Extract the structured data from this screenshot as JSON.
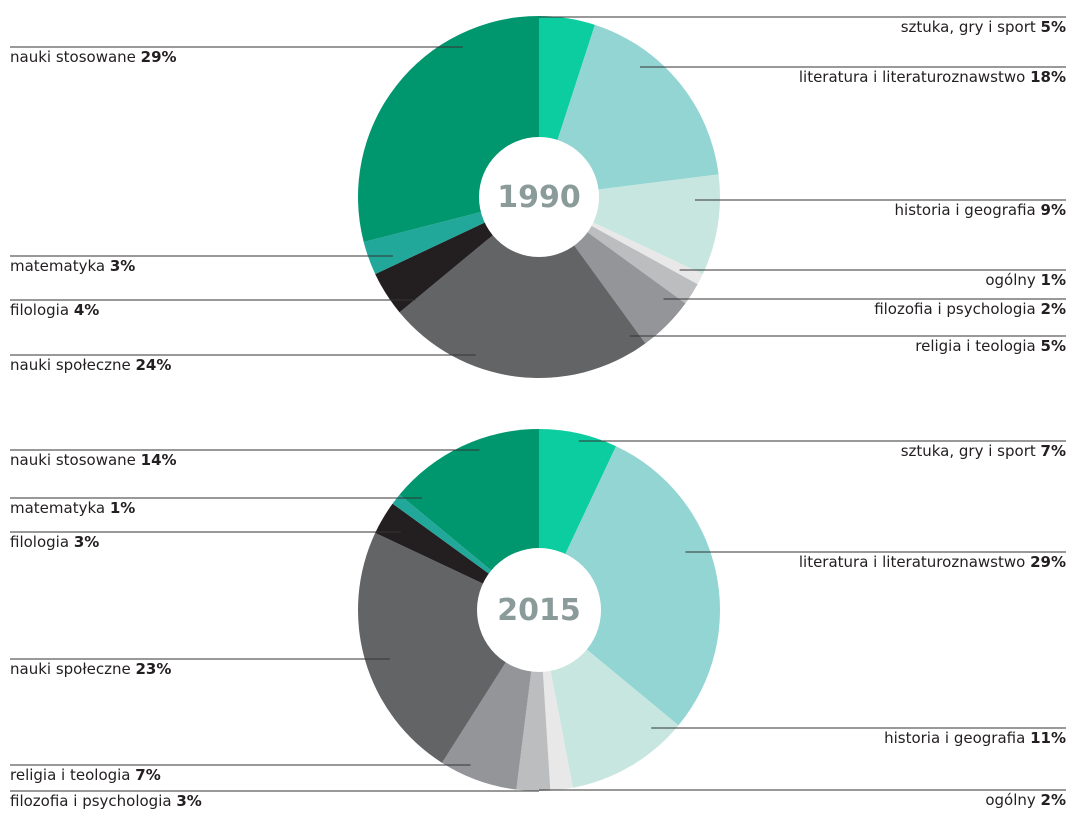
{
  "chart_data": [
    {
      "type": "pie",
      "title": "1990",
      "categories": [
        "sztuka, gry i sport",
        "literatura i literaturoznawstwo",
        "historia i geografia",
        "ogólny",
        "filozofia i psychologia",
        "religia i teologia",
        "nauki społeczne",
        "filologia",
        "matematyka",
        "nauki stosowane"
      ],
      "values": [
        5,
        18,
        9,
        1,
        2,
        5,
        24,
        4,
        3,
        29
      ],
      "value_labels": [
        "5%",
        "18%",
        "9%",
        "1%",
        "2%",
        "5%",
        "24%",
        "4%",
        "3%",
        "29%"
      ],
      "colors": [
        "#0ccda0",
        "#93d5d3",
        "#c6e6df",
        "#e8e8e8",
        "#bcbdbf",
        "#939598",
        "#636466",
        "#231f20",
        "#22a89a",
        "#00966e"
      ]
    },
    {
      "type": "pie",
      "title": "2015",
      "categories": [
        "sztuka, gry i sport",
        "literatura i literaturoznawstwo",
        "historia i geografia",
        "ogólny",
        "filozofia i psychologia",
        "religia i teologia",
        "nauki społeczne",
        "filologia",
        "matematyka",
        "nauki stosowane"
      ],
      "values": [
        7,
        29,
        11,
        2,
        3,
        7,
        23,
        3,
        1,
        14
      ],
      "value_labels": [
        "7%",
        "29%",
        "11%",
        "2%",
        "3%",
        "7%",
        "23%",
        "3%",
        "1%",
        "14%"
      ],
      "colors": [
        "#0ccda0",
        "#93d5d3",
        "#c6e6df",
        "#e8e8e8",
        "#bcbdbf",
        "#939598",
        "#636466",
        "#231f20",
        "#22a89a",
        "#00966e"
      ]
    }
  ]
}
